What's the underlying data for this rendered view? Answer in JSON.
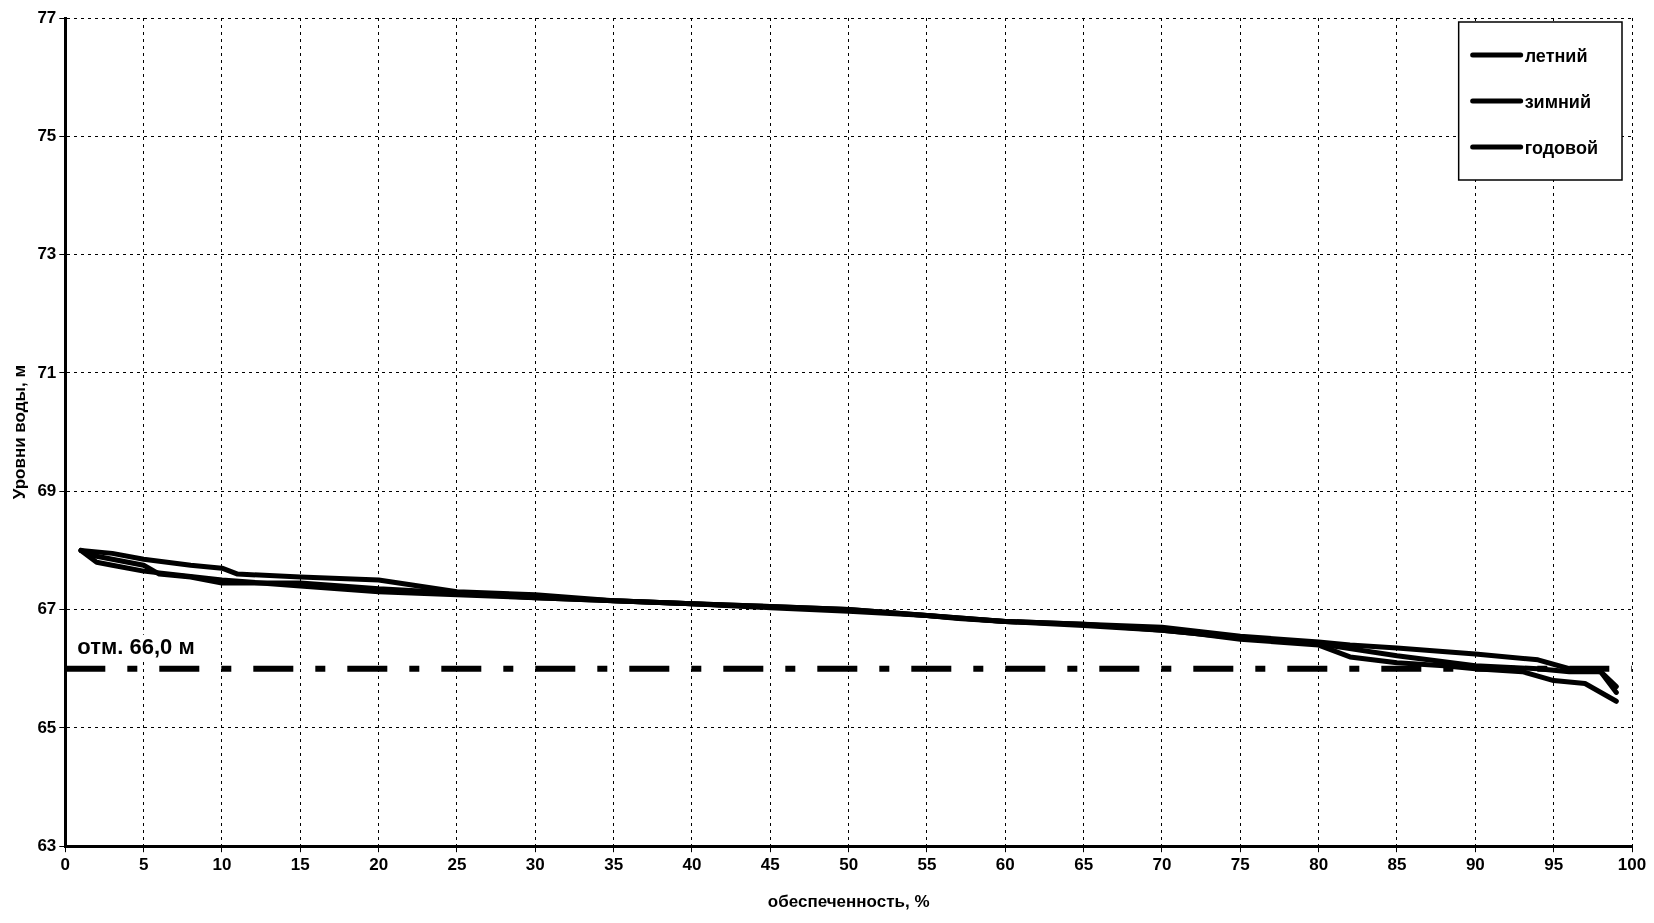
{
  "chart_data": {
    "type": "line",
    "xlabel": "обеспеченность, %",
    "ylabel": "Уровни воды, м",
    "xlim": [
      0,
      100
    ],
    "xticks": [
      0,
      5,
      10,
      15,
      20,
      25,
      30,
      35,
      40,
      45,
      50,
      55,
      60,
      65,
      70,
      75,
      80,
      85,
      90,
      95,
      100
    ],
    "ylim": [
      63,
      77
    ],
    "yticks": [
      63,
      65,
      67,
      69,
      71,
      73,
      75,
      77
    ],
    "grid": true,
    "legend": "top right",
    "marker": "none",
    "line_style": "solid",
    "series": [
      {
        "name": "летний",
        "color": "#000000",
        "x": [
          1,
          3,
          5,
          8,
          10,
          11,
          15,
          20,
          25,
          30,
          35,
          40,
          45,
          50,
          55,
          57,
          60,
          65,
          70,
          75,
          80,
          82,
          85,
          90,
          94,
          96,
          98,
          99
        ],
        "values": [
          68.0,
          67.95,
          67.85,
          67.75,
          67.7,
          67.6,
          67.55,
          67.5,
          67.3,
          67.25,
          67.15,
          67.1,
          67.05,
          67.0,
          66.9,
          66.85,
          66.8,
          66.75,
          66.7,
          66.55,
          66.45,
          66.4,
          66.35,
          66.25,
          66.15,
          66.0,
          65.95,
          65.7
        ]
      },
      {
        "name": "зимний",
        "color": "#000000",
        "x": [
          1,
          2,
          3,
          5,
          10,
          15,
          20,
          25,
          30,
          35,
          40,
          45,
          50,
          55,
          60,
          65,
          70,
          72,
          75,
          80,
          82,
          85,
          88,
          90,
          93,
          95,
          97,
          99
        ],
        "values": [
          68.0,
          67.8,
          67.75,
          67.65,
          67.5,
          67.4,
          67.3,
          67.25,
          67.2,
          67.15,
          67.1,
          67.05,
          67.0,
          66.9,
          66.8,
          66.75,
          66.65,
          66.6,
          66.5,
          66.4,
          66.2,
          66.1,
          66.05,
          66.0,
          65.95,
          65.8,
          65.75,
          65.45
        ]
      },
      {
        "name": "годовой",
        "color": "#000000",
        "x": [
          1,
          2,
          5,
          6,
          8,
          10,
          15,
          20,
          25,
          30,
          35,
          40,
          45,
          50,
          55,
          60,
          65,
          70,
          75,
          80,
          85,
          90,
          94,
          96,
          98,
          99
        ],
        "values": [
          68.0,
          67.9,
          67.75,
          67.6,
          67.55,
          67.45,
          67.45,
          67.35,
          67.28,
          67.2,
          67.15,
          67.1,
          67.03,
          66.97,
          66.9,
          66.8,
          66.73,
          66.65,
          66.52,
          66.42,
          66.22,
          66.05,
          66.0,
          65.95,
          65.95,
          65.6
        ]
      }
    ],
    "ref_lines": [
      {
        "axis": "y",
        "value": 66.0,
        "label": "отм. 66,0 м",
        "color": "#000000",
        "line_style": "dashdot"
      }
    ]
  }
}
